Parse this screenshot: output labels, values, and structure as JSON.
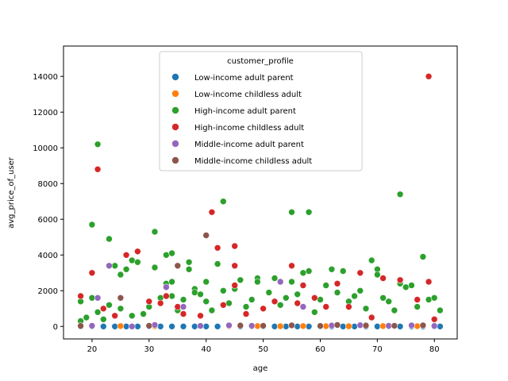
{
  "chart_data": {
    "type": "scatter",
    "xlabel": "age",
    "ylabel": "avg_price_of_user",
    "xlim": [
      15,
      84
    ],
    "ylim": [
      -700,
      15700
    ],
    "xticks": [
      20,
      30,
      40,
      50,
      60,
      70,
      80
    ],
    "yticks": [
      0,
      2000,
      4000,
      6000,
      8000,
      10000,
      12000,
      14000
    ],
    "grid": false,
    "legend": {
      "title": "customer_profile",
      "placement": "top-center"
    },
    "series": [
      {
        "name": "Low-income adult parent",
        "color": "#1f77b4",
        "points": [
          [
            18,
            0
          ],
          [
            20,
            0
          ],
          [
            22,
            0
          ],
          [
            24,
            0
          ],
          [
            26,
            0
          ],
          [
            28,
            0
          ],
          [
            30,
            0
          ],
          [
            32,
            0
          ],
          [
            34,
            0
          ],
          [
            36,
            0
          ],
          [
            38,
            0
          ],
          [
            40,
            0
          ],
          [
            42,
            0
          ],
          [
            44,
            0
          ],
          [
            46,
            0
          ],
          [
            48,
            0
          ],
          [
            50,
            0
          ],
          [
            52,
            0
          ],
          [
            54,
            0
          ],
          [
            56,
            0
          ],
          [
            58,
            0
          ],
          [
            60,
            0
          ],
          [
            62,
            0
          ],
          [
            64,
            0
          ],
          [
            66,
            0
          ],
          [
            68,
            0
          ],
          [
            70,
            0
          ],
          [
            72,
            0
          ],
          [
            74,
            0
          ],
          [
            76,
            0
          ],
          [
            78,
            0
          ],
          [
            80,
            0
          ],
          [
            81,
            0
          ]
        ]
      },
      {
        "name": "Low-income childless adult",
        "color": "#ff7f0e",
        "points": [
          [
            25,
            20
          ],
          [
            31,
            10
          ],
          [
            44,
            15
          ],
          [
            49,
            20
          ],
          [
            53,
            10
          ],
          [
            57,
            20
          ],
          [
            61,
            15
          ],
          [
            65,
            10
          ],
          [
            71,
            20
          ],
          [
            77,
            15
          ]
        ]
      },
      {
        "name": "High-income adult parent",
        "color": "#2ca02c",
        "points": [
          [
            18,
            300
          ],
          [
            18,
            1400
          ],
          [
            19,
            500
          ],
          [
            20,
            5700
          ],
          [
            20,
            1600
          ],
          [
            21,
            10200
          ],
          [
            21,
            800
          ],
          [
            22,
            400
          ],
          [
            23,
            4900
          ],
          [
            23,
            1200
          ],
          [
            24,
            3400
          ],
          [
            25,
            1000
          ],
          [
            25,
            2900
          ],
          [
            26,
            3200
          ],
          [
            27,
            3700
          ],
          [
            27,
            600
          ],
          [
            28,
            3600
          ],
          [
            29,
            700
          ],
          [
            30,
            1100
          ],
          [
            31,
            5300
          ],
          [
            31,
            3300
          ],
          [
            32,
            1600
          ],
          [
            33,
            4000
          ],
          [
            33,
            2400
          ],
          [
            34,
            4100
          ],
          [
            34,
            1700
          ],
          [
            34,
            2500
          ],
          [
            35,
            900
          ],
          [
            36,
            1500
          ],
          [
            37,
            3600
          ],
          [
            37,
            3200
          ],
          [
            38,
            2100
          ],
          [
            38,
            1900
          ],
          [
            39,
            1800
          ],
          [
            40,
            2500
          ],
          [
            40,
            1400
          ],
          [
            41,
            900
          ],
          [
            42,
            3500
          ],
          [
            43,
            7000
          ],
          [
            43,
            2000
          ],
          [
            44,
            1300
          ],
          [
            45,
            2100
          ],
          [
            46,
            2600
          ],
          [
            47,
            1100
          ],
          [
            48,
            1500
          ],
          [
            49,
            2700
          ],
          [
            49,
            2500
          ],
          [
            50,
            1000
          ],
          [
            51,
            1900
          ],
          [
            52,
            2700
          ],
          [
            53,
            1200
          ],
          [
            54,
            1600
          ],
          [
            55,
            6400
          ],
          [
            55,
            2500
          ],
          [
            56,
            1800
          ],
          [
            57,
            3000
          ],
          [
            58,
            6400
          ],
          [
            58,
            3100
          ],
          [
            59,
            800
          ],
          [
            60,
            1500
          ],
          [
            61,
            2300
          ],
          [
            62,
            3200
          ],
          [
            63,
            1900
          ],
          [
            64,
            3100
          ],
          [
            65,
            1400
          ],
          [
            66,
            1700
          ],
          [
            67,
            2000
          ],
          [
            68,
            1000
          ],
          [
            69,
            3700
          ],
          [
            70,
            3200
          ],
          [
            70,
            2900
          ],
          [
            71,
            1600
          ],
          [
            72,
            1400
          ],
          [
            73,
            900
          ],
          [
            74,
            7400
          ],
          [
            74,
            2400
          ],
          [
            75,
            2200
          ],
          [
            76,
            2300
          ],
          [
            77,
            1100
          ],
          [
            78,
            3900
          ],
          [
            79,
            1500
          ],
          [
            80,
            1600
          ],
          [
            81,
            900
          ]
        ]
      },
      {
        "name": "High-income childless adult",
        "color": "#d62728",
        "points": [
          [
            18,
            1700
          ],
          [
            20,
            3000
          ],
          [
            21,
            8800
          ],
          [
            22,
            1000
          ],
          [
            24,
            600
          ],
          [
            26,
            4000
          ],
          [
            28,
            4200
          ],
          [
            30,
            1400
          ],
          [
            32,
            1300
          ],
          [
            33,
            1700
          ],
          [
            35,
            1100
          ],
          [
            36,
            700
          ],
          [
            39,
            600
          ],
          [
            41,
            6400
          ],
          [
            42,
            4400
          ],
          [
            43,
            1200
          ],
          [
            45,
            4500
          ],
          [
            45,
            3400
          ],
          [
            45,
            2300
          ],
          [
            47,
            700
          ],
          [
            50,
            1000
          ],
          [
            52,
            1400
          ],
          [
            55,
            3400
          ],
          [
            56,
            1300
          ],
          [
            57,
            2300
          ],
          [
            59,
            1600
          ],
          [
            61,
            1100
          ],
          [
            63,
            2400
          ],
          [
            65,
            1100
          ],
          [
            67,
            3000
          ],
          [
            69,
            500
          ],
          [
            71,
            2700
          ],
          [
            74,
            2600
          ],
          [
            77,
            1500
          ],
          [
            79,
            14000
          ],
          [
            79,
            2500
          ],
          [
            80,
            400
          ]
        ]
      },
      {
        "name": "Middle-income adult parent",
        "color": "#9467bd",
        "points": [
          [
            20,
            40
          ],
          [
            21,
            1600
          ],
          [
            23,
            3400
          ],
          [
            27,
            0
          ],
          [
            31,
            80
          ],
          [
            33,
            2200
          ],
          [
            36,
            1100
          ],
          [
            39,
            30
          ],
          [
            44,
            60
          ],
          [
            48,
            40
          ],
          [
            53,
            2500
          ],
          [
            57,
            1100
          ],
          [
            62,
            50
          ],
          [
            67,
            70
          ],
          [
            72,
            40
          ],
          [
            76,
            60
          ],
          [
            80,
            30
          ]
        ]
      },
      {
        "name": "Middle-income childless adult",
        "color": "#8c564b",
        "points": [
          [
            18,
            30
          ],
          [
            25,
            1600
          ],
          [
            30,
            40
          ],
          [
            35,
            3400
          ],
          [
            40,
            5100
          ],
          [
            46,
            50
          ],
          [
            50,
            40
          ],
          [
            55,
            60
          ],
          [
            60,
            30
          ],
          [
            63,
            80
          ],
          [
            68,
            50
          ],
          [
            73,
            40
          ],
          [
            78,
            60
          ]
        ]
      }
    ]
  }
}
